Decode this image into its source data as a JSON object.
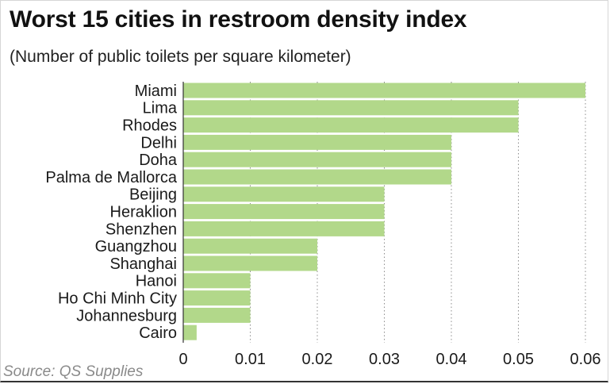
{
  "title": "Worst 15 cities in restroom density index",
  "subtitle": "(Number of public toilets per square kilometer)",
  "source": "Source: QS Supplies",
  "colors": {
    "bar": "#b2d88a",
    "grid": "#8c8c8c",
    "axis": "#333333"
  },
  "chart_data": {
    "type": "bar",
    "orientation": "horizontal",
    "title": "Worst 15 cities in restroom density index",
    "subtitle": "(Number of public toilets per square kilometer)",
    "categories": [
      "Miami",
      "Lima",
      "Rhodes",
      "Delhi",
      "Doha",
      "Palma de Mallorca",
      "Beijing",
      "Heraklion",
      "Shenzhen",
      "Guangzhou",
      "Shanghai",
      "Hanoi",
      "Ho Chi Minh City",
      "Johannesburg",
      "Cairo"
    ],
    "values": [
      0.06,
      0.05,
      0.05,
      0.04,
      0.04,
      0.04,
      0.03,
      0.03,
      0.03,
      0.02,
      0.02,
      0.01,
      0.01,
      0.01,
      0.002
    ],
    "xlim": [
      0,
      0.06
    ],
    "xticks": [
      "0",
      "0.01",
      "0.02",
      "0.03",
      "0.04",
      "0.05",
      "0.06"
    ],
    "xtick_values": [
      0,
      0.01,
      0.02,
      0.03,
      0.04,
      0.05,
      0.06
    ],
    "grid": "vertical dotted",
    "legend": "none"
  }
}
